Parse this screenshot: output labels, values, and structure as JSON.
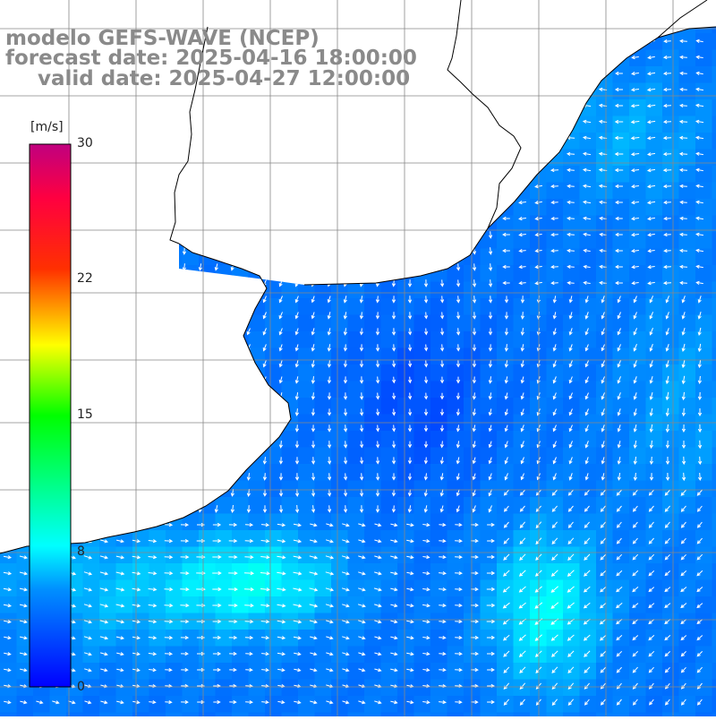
{
  "header": {
    "model": "modelo GEFS-WAVE (NCEP)",
    "forecast": "forecast date: 2025-04-16 18:00:00",
    "valid": "valid date: 2025-04-27 12:00:00"
  },
  "colorbar": {
    "unit": "[m/s]",
    "ticks": [
      "30",
      "22",
      "15",
      "8",
      "0"
    ],
    "colors": [
      "#0000ff",
      "#0090ff",
      "#00ffff",
      "#00ff00",
      "#ffff00",
      "#ff0000",
      "#c0007f"
    ]
  },
  "map": {
    "land_color": "#ffffff",
    "grid_color": "#888888",
    "coast_color": "#000000"
  }
}
